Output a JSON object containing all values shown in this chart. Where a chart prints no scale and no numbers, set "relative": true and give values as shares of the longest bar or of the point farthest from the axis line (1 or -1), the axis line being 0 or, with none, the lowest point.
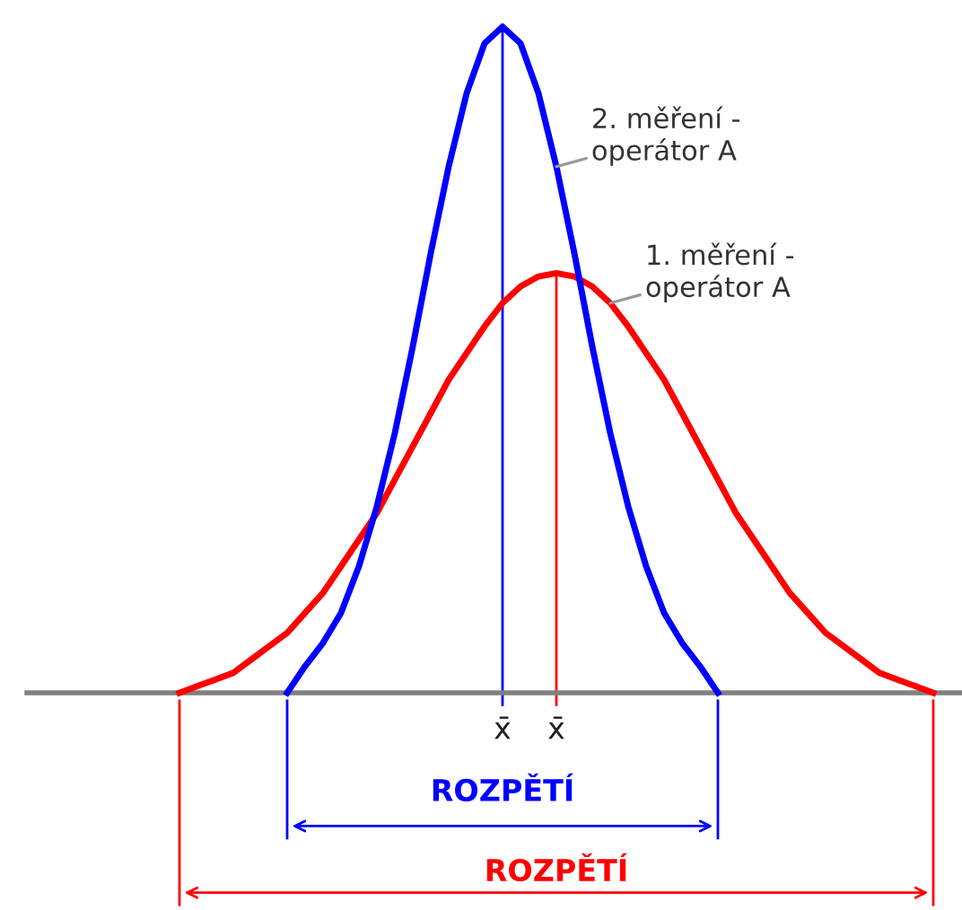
{
  "chart_data": {
    "type": "line",
    "relative": true,
    "categories": [
      null,
      null,
      null,
      null,
      null,
      null,
      null,
      null,
      null,
      null,
      null,
      null,
      null,
      null,
      null,
      null,
      null,
      null,
      null,
      null,
      null,
      null,
      null,
      null,
      null,
      null,
      null,
      null,
      null,
      null,
      null,
      null,
      null,
      null,
      null,
      null,
      null,
      null,
      null,
      null,
      null,
      null,
      null
    ],
    "series": [
      {
        "name": "1. měření -\noperátor A",
        "color": "#ff0000",
        "values": [
          0,
          0.01,
          0.02,
          0.03,
          0.05,
          0.07,
          0.09,
          0.12,
          0.15,
          0.19,
          0.23,
          0.27,
          0.32,
          0.37,
          0.42,
          0.47,
          0.51,
          0.55,
          0.585,
          0.61,
          0.625,
          0.63,
          0.625,
          0.61,
          0.585,
          0.55,
          0.51,
          0.47,
          0.42,
          0.37,
          0.32,
          0.27,
          0.23,
          0.19,
          0.15,
          0.12,
          0.09,
          0.07,
          0.05,
          0.03,
          0.02,
          0.01,
          0
        ]
      },
      {
        "name": "2. měření -\noperátor A",
        "color": "#0000ff",
        "values": [
          null,
          null,
          null,
          null,
          null,
          null,
          0,
          0.04,
          0.075,
          0.12,
          0.19,
          0.28,
          0.39,
          0.52,
          0.66,
          0.79,
          0.9,
          0.975,
          1,
          0.975,
          0.9,
          0.79,
          0.66,
          0.52,
          0.39,
          0.28,
          0.19,
          0.12,
          0.075,
          0.04,
          0,
          null,
          null,
          null,
          null,
          null,
          null,
          null,
          null,
          null,
          null,
          null,
          null
        ]
      }
    ],
    "annotations": [
      "x̄",
      "x̄",
      "ROZPĚTÍ",
      "ROZPĚTÍ"
    ],
    "legend": false,
    "grid": false,
    "marker": "none",
    "line_style": "solid"
  }
}
